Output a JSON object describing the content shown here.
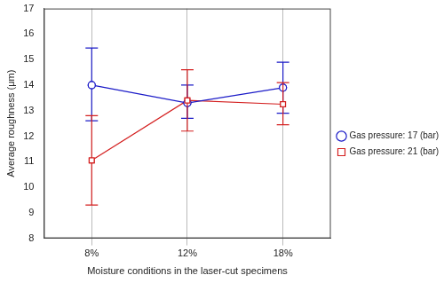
{
  "chart_data": {
    "type": "line",
    "x_label": "Moisture conditions in the laser-cut specimens",
    "y_label": "Average roughness (μm)",
    "categories": [
      "8%",
      "12%",
      "18%"
    ],
    "series": [
      {
        "name": "Gas pressure: 17 (bar)",
        "color": "#1c1cc8",
        "marker": "circle",
        "values": [
          14.0,
          13.3,
          13.9
        ],
        "error_low": [
          12.6,
          12.7,
          12.9
        ],
        "error_high": [
          15.45,
          14.0,
          14.9
        ]
      },
      {
        "name": "Gas pressure: 21 (bar)",
        "color": "#d42020",
        "marker": "square",
        "values": [
          11.05,
          13.4,
          13.25
        ],
        "error_low": [
          9.3,
          12.2,
          12.45
        ],
        "error_high": [
          12.8,
          14.6,
          14.1
        ]
      }
    ],
    "ylim": [
      8,
      17
    ],
    "yticks": [
      8,
      9,
      10,
      11,
      12,
      13,
      14,
      15,
      16,
      17
    ],
    "grid": "x",
    "legend": "right"
  }
}
